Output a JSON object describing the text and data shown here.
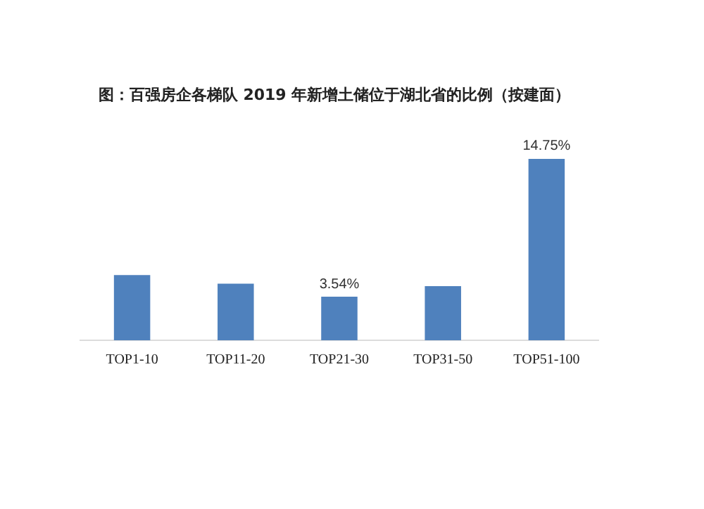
{
  "chart_data": {
    "type": "bar",
    "title": "图：百强房企各梯队 2019 年新增土储位于湖北省的比例（按建面）",
    "categories": [
      "TOP1-10",
      "TOP11-20",
      "TOP21-30",
      "TOP31-50",
      "TOP51-100"
    ],
    "values": [
      5.3,
      4.6,
      3.54,
      4.4,
      14.75
    ],
    "value_labels": [
      null,
      null,
      "3.54%",
      null,
      "14.75%"
    ],
    "color": "#4f81bd",
    "grid": false,
    "legend": false
  }
}
